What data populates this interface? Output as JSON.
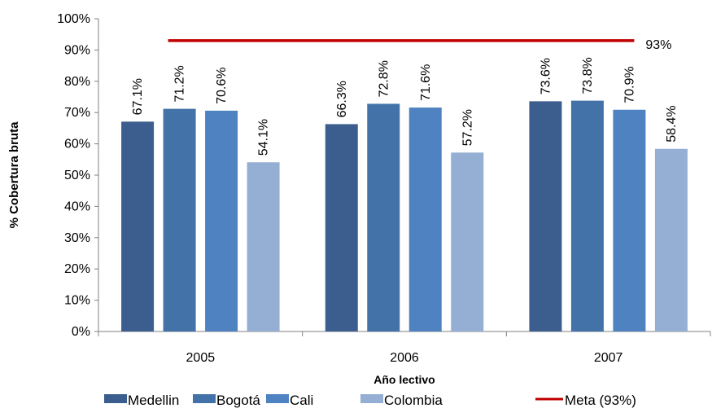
{
  "chart_data": {
    "type": "bar",
    "categories": [
      "2005",
      "2006",
      "2007"
    ],
    "series": [
      {
        "name": "Medellin",
        "values": [
          67.1,
          66.3,
          73.6
        ],
        "labels": [
          "67.1%",
          "66.3%",
          "73.6%"
        ],
        "color": "#3B5E8F"
      },
      {
        "name": "Bogotá",
        "values": [
          71.2,
          72.8,
          73.8
        ],
        "labels": [
          "71.2%",
          "72.8%",
          "73.8%"
        ],
        "color": "#4372A8"
      },
      {
        "name": "Cali",
        "values": [
          70.6,
          71.6,
          70.9
        ],
        "labels": [
          "70.6%",
          "71.6%",
          "70.9%"
        ],
        "color": "#4F82C0"
      },
      {
        "name": "Colombia",
        "values": [
          54.1,
          57.2,
          58.4
        ],
        "labels": [
          "54.1%",
          "57.2%",
          "58.4%"
        ],
        "color": "#95AED3"
      }
    ],
    "target_line": {
      "name": "Meta (93%)",
      "value": 93,
      "label": "93%",
      "color": "#C00000"
    },
    "xlabel": "Año lectivo",
    "ylabel": "% Cobertura bruta",
    "ylim": [
      0,
      100
    ],
    "yticks": [
      "0%",
      "10%",
      "20%",
      "30%",
      "40%",
      "50%",
      "60%",
      "70%",
      "80%",
      "90%",
      "100%"
    ],
    "grid": false,
    "legend_position": "bottom"
  }
}
